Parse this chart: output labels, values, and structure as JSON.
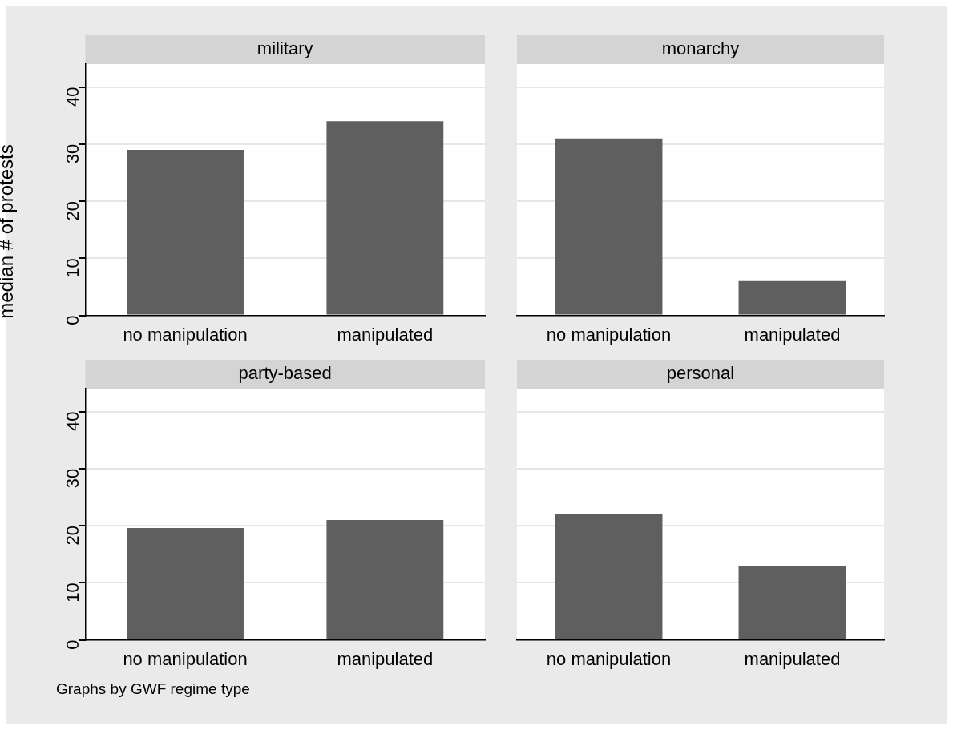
{
  "chart_data": [
    {
      "type": "bar",
      "title": "military",
      "ylabel": "median # of protests",
      "categories": [
        "no manipulation",
        "manipulated"
      ],
      "values": [
        29,
        34
      ],
      "color": "#5f5f5f",
      "ylim": [
        0,
        44
      ],
      "yticks": [
        0,
        10,
        20,
        30,
        40
      ],
      "grid": "y"
    },
    {
      "type": "bar",
      "title": "monarchy",
      "categories": [
        "no manipulation",
        "manipulated"
      ],
      "values": [
        31,
        6
      ],
      "color": "#5f5f5f",
      "ylim": [
        0,
        44
      ],
      "yticks": [
        0,
        10,
        20,
        30,
        40
      ],
      "grid": "y",
      "tick_labels": "x"
    },
    {
      "type": "bar",
      "title": "party-based",
      "categories": [
        "no manipulation",
        "manipulated"
      ],
      "values": [
        19.6,
        21
      ],
      "color": "#5f5f5f",
      "ylim": [
        0,
        44
      ],
      "yticks": [
        0,
        10,
        20,
        30,
        40
      ],
      "grid": "y",
      "annotations": [
        "Graphs by GWF regime type"
      ]
    },
    {
      "type": "bar",
      "title": "personal",
      "categories": [
        "no manipulation",
        "manipulated"
      ],
      "values": [
        22,
        13
      ],
      "color": "#5f5f5f",
      "ylim": [
        0,
        44
      ],
      "yticks": [
        0,
        10,
        20,
        30,
        40
      ],
      "grid": "y",
      "tick_labels": "x"
    }
  ]
}
